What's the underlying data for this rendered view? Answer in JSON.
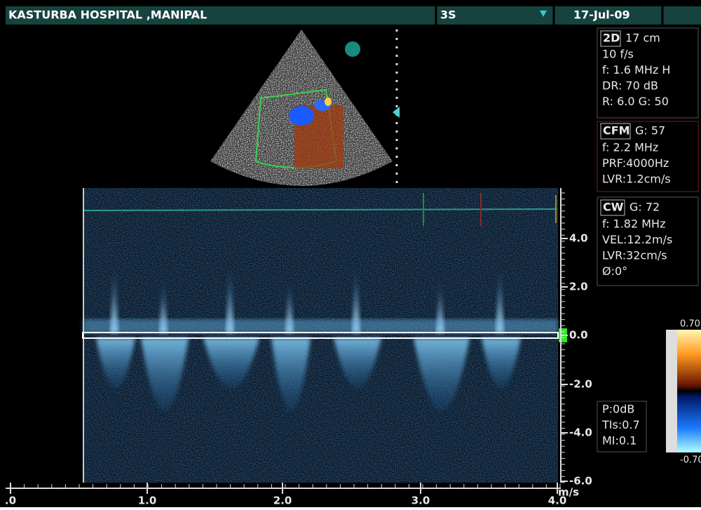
{
  "header": {
    "hospital": "KASTURBA HOSPITAL ,MANIPAL",
    "probe": "3S",
    "date": "17-Jul-09"
  },
  "panels": {
    "two_d": {
      "mode": "2D",
      "depth": "17 cm",
      "lines": [
        "10 f/s",
        "f: 1.6 MHz H",
        "DR: 70 dB",
        "R: 6.0   G: 50"
      ]
    },
    "cfm": {
      "mode": "CFM",
      "gain": "G: 57",
      "lines": [
        "f: 2.2 MHz",
        "PRF:4000Hz",
        "LVR:1.2cm/s"
      ]
    },
    "cw": {
      "mode": "CW",
      "gain": "G: 72",
      "lines": [
        "f: 1.82 MHz",
        "VEL:12.2m/s",
        "LVR:32cm/s",
        "Ø:0°"
      ]
    },
    "power": {
      "lines": [
        "P:0dB",
        "TIs:0.7",
        "MI:0.1"
      ]
    }
  },
  "color_scale": {
    "top": "0.70",
    "bottom": "-0.70"
  },
  "velocity_scale": {
    "ticks": [
      "4.0",
      "2.0",
      "0.0",
      "-2.0",
      "-4.0",
      "-6.0"
    ],
    "unit": "m/s"
  },
  "time_axis": {
    "ticks": [
      ".0",
      "1.0",
      "2.0",
      "3.0",
      "4.0"
    ]
  }
}
